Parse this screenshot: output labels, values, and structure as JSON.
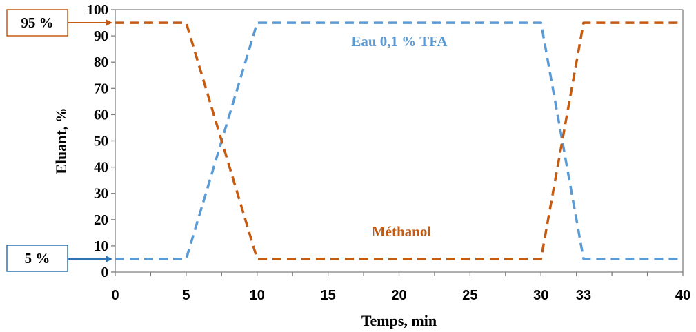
{
  "chart_data": {
    "type": "line",
    "xlabel": "Temps, min",
    "ylabel": "Eluant, %",
    "xlim": [
      0,
      40
    ],
    "ylim": [
      0,
      100
    ],
    "x_ticks": [
      "0",
      "5",
      "10",
      "15",
      "20",
      "25",
      "30",
      "33",
      "40"
    ],
    "y_ticks": [
      "0",
      "10",
      "20",
      "30",
      "40",
      "50",
      "60",
      "70",
      "80",
      "90",
      "100"
    ],
    "grid": false,
    "series": [
      {
        "name": "Eau 0,1 % TFA",
        "color": "#5b9bd5",
        "style": "dashed",
        "points": [
          [
            0,
            5
          ],
          [
            5,
            5
          ],
          [
            10,
            95
          ],
          [
            30,
            95
          ],
          [
            33,
            5
          ],
          [
            40,
            5
          ]
        ]
      },
      {
        "name": "Méthanol",
        "color": "#c55a11",
        "style": "dashed",
        "points": [
          [
            0,
            95
          ],
          [
            5,
            95
          ],
          [
            10,
            5
          ],
          [
            30,
            5
          ],
          [
            33,
            95
          ],
          [
            40,
            95
          ]
        ]
      }
    ],
    "callouts": [
      {
        "text": "95 %",
        "y": 95,
        "color": "#c55a11"
      },
      {
        "text": "5 %",
        "y": 5,
        "color": "#2e75b6"
      }
    ]
  }
}
